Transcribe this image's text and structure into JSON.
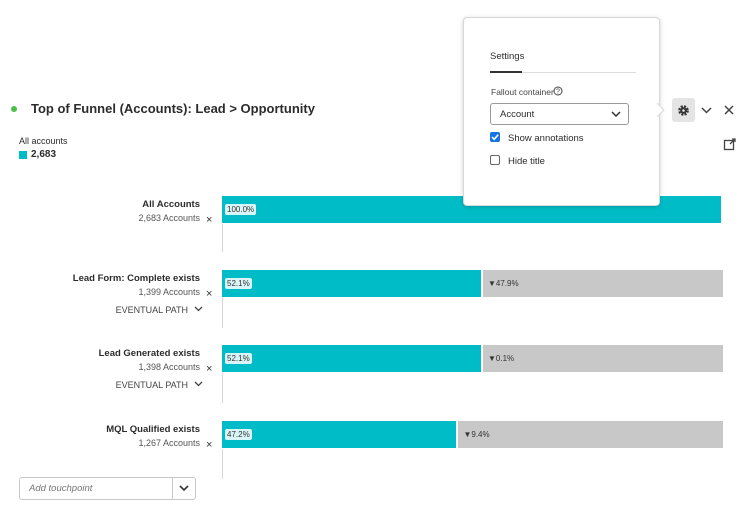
{
  "panel": {
    "title": "Top of Funnel (Accounts): Lead > Opportunity",
    "summary_label": "All accounts",
    "summary_value": "2,683"
  },
  "steps": [
    {
      "name": "All Accounts",
      "count": "2,683 Accounts",
      "percent": {
        "value": 100.0,
        "label": "100.0%"
      }
    },
    {
      "name": "Lead Form: Complete exists",
      "count": "1,399 Accounts",
      "path": "EVENTUAL PATH",
      "percent": {
        "value": 52.1,
        "label": "52.1%"
      },
      "fallout": "▼47.9%"
    },
    {
      "name": "Lead Generated exists",
      "count": "1,398 Accounts",
      "path": "EVENTUAL PATH",
      "percent": {
        "value": 52.1,
        "label": "52.1%"
      },
      "fallout": "▼0.1%"
    },
    {
      "name": "MQL Qualified exists",
      "count": "1,267 Accounts",
      "percent": {
        "value": 47.2,
        "label": "47.2%"
      },
      "fallout": "▼9.4%"
    }
  ],
  "add_touchpoint": "Add touchpoint",
  "settings": {
    "title": "Settings",
    "container_label": "Fallout container",
    "container_value": "Account",
    "show_annotations": "Show annotations",
    "hide_title": "Hide title"
  }
}
